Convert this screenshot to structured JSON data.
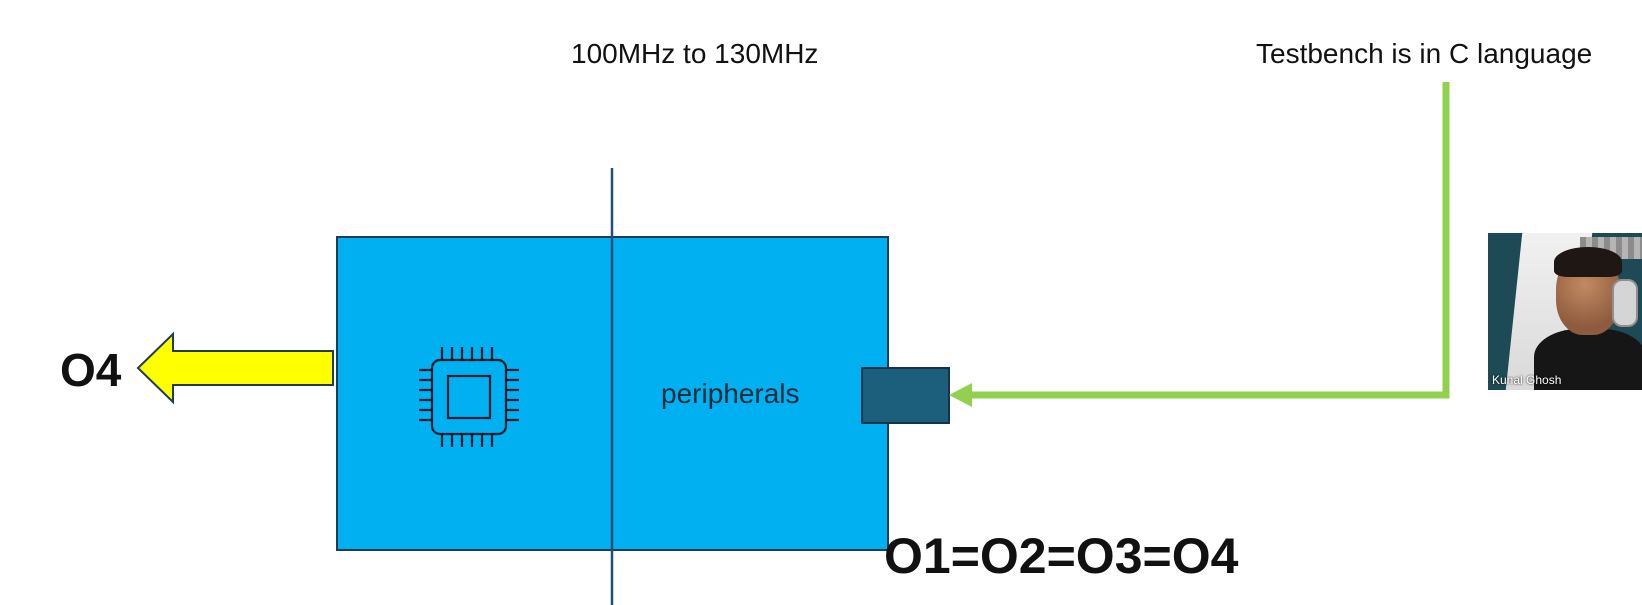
{
  "labels": {
    "frequency": "100MHz to 130MHz",
    "testbench": "Testbench is in C language",
    "peripherals": "peripherals",
    "output": "O4",
    "equality": "O1=O2=O3=O4"
  },
  "video": {
    "participant_name": "Kunal Ghosh"
  },
  "icons": {
    "processor": "cpu-chip-icon"
  },
  "colors": {
    "block_fill": "#00B0F0",
    "block_border": "#1f3b55",
    "divider": "#1f4e79",
    "port_fill": "#1b5f7d",
    "input_arrow": "#92D050",
    "output_arrow_fill": "#FFFF00",
    "output_arrow_border": "#1f3b55"
  }
}
